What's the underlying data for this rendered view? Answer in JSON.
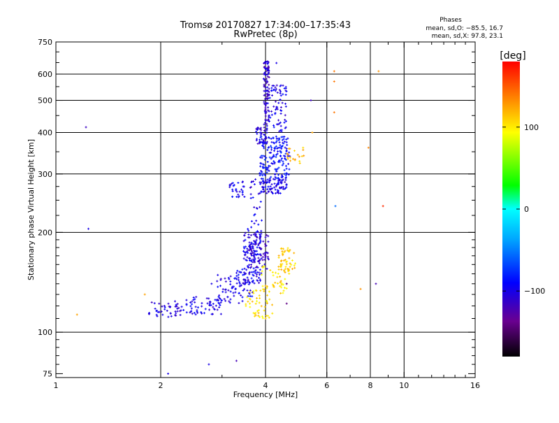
{
  "header": {
    "title_line1": "Tromsø 20170827 17:34:00–17:35:43",
    "title_line2": "RwPretec (8p)",
    "phase_label": "Phases",
    "phase_o": "mean, sd,O: −85.5, 16.7",
    "phase_x": "mean, sd,X:  97.8, 23.1"
  },
  "colorbar": {
    "label": "[deg]",
    "range": [
      -180,
      180
    ],
    "ticks": [
      {
        "value": 100,
        "label": "100"
      },
      {
        "value": 0,
        "label": "0"
      },
      {
        "value": -100,
        "label": "−100"
      }
    ]
  },
  "chart_data": {
    "type": "scatter",
    "xlabel": "Frequency [MHz]",
    "ylabel": "Stationary phase Virtual Height [km]",
    "x_scale": "log",
    "y_scale": "log",
    "xlim": [
      1,
      16
    ],
    "ylim": [
      73,
      750
    ],
    "grid": true,
    "x_ticks": [
      {
        "value": 1,
        "label": "1",
        "grid": false
      },
      {
        "value": 2,
        "label": "2",
        "grid": true
      },
      {
        "value": 4,
        "label": "4",
        "grid": true
      },
      {
        "value": 6,
        "label": "6",
        "grid": true
      },
      {
        "value": 8,
        "label": "8",
        "grid": true
      },
      {
        "value": 10,
        "label": "10",
        "grid": true
      },
      {
        "value": 16,
        "label": "16",
        "grid": false
      }
    ],
    "y_ticks": [
      {
        "value": 75,
        "label": "75",
        "grid": false
      },
      {
        "value": 100,
        "label": "100",
        "grid": true
      },
      {
        "value": 200,
        "label": "200",
        "grid": true
      },
      {
        "value": 300,
        "label": "300",
        "grid": true
      },
      {
        "value": 400,
        "label": "400",
        "grid": true
      },
      {
        "value": 500,
        "label": "500",
        "grid": true
      },
      {
        "value": 600,
        "label": "600",
        "grid": true
      },
      {
        "value": 750,
        "label": "750",
        "grid": false
      }
    ],
    "clusters": [
      {
        "x": [
          1.85,
          2.3
        ],
        "y": [
          110,
          124
        ],
        "phase": -105,
        "count": 45
      },
      {
        "x": [
          2.3,
          3.0
        ],
        "y": [
          113,
          128
        ],
        "phase": -100,
        "count": 60
      },
      {
        "x": [
          2.9,
          3.5
        ],
        "y": [
          122,
          150
        ],
        "phase": -100,
        "count": 55
      },
      {
        "x": [
          3.2,
          3.7
        ],
        "y": [
          128,
          155
        ],
        "phase": -95,
        "count": 40
      },
      {
        "x": [
          3.45,
          3.9
        ],
        "y": [
          140,
          205
        ],
        "phase": -100,
        "count": 130
      },
      {
        "x": [
          3.6,
          4.1
        ],
        "y": [
          155,
          200
        ],
        "phase": -110,
        "count": 70
      },
      {
        "x": [
          3.15,
          3.5
        ],
        "y": [
          255,
          285
        ],
        "phase": -95,
        "count": 30
      },
      {
        "x": [
          3.6,
          3.9
        ],
        "y": [
          205,
          290
        ],
        "phase": -100,
        "count": 25
      },
      {
        "x": [
          3.85,
          4.6
        ],
        "y": [
          262,
          290
        ],
        "phase": -100,
        "count": 90
      },
      {
        "x": [
          3.85,
          4.7
        ],
        "y": [
          290,
          390
        ],
        "phase": -88,
        "count": 170
      },
      {
        "x": [
          3.75,
          4.05
        ],
        "y": [
          370,
          415
        ],
        "phase": -105,
        "count": 45
      },
      {
        "x": [
          3.95,
          4.1
        ],
        "y": [
          410,
          660
        ],
        "phase": -110,
        "count": 110
      },
      {
        "x": [
          4.1,
          4.6
        ],
        "y": [
          400,
          560
        ],
        "phase": -100,
        "count": 70
      },
      {
        "x": [
          3.5,
          4.2
        ],
        "y": [
          110,
          135
        ],
        "phase": 105,
        "count": 50
      },
      {
        "x": [
          3.9,
          4.6
        ],
        "y": [
          130,
          160
        ],
        "phase": 105,
        "count": 40
      },
      {
        "x": [
          4.35,
          4.9
        ],
        "y": [
          150,
          180
        ],
        "phase": 110,
        "count": 50
      },
      {
        "x": [
          4.6,
          5.2
        ],
        "y": [
          320,
          360
        ],
        "phase": 115,
        "count": 20
      }
    ],
    "points": [
      {
        "x": 1.15,
        "y": 113,
        "phase": 125
      },
      {
        "x": 1.22,
        "y": 415,
        "phase": -115
      },
      {
        "x": 1.24,
        "y": 205,
        "phase": -100
      },
      {
        "x": 1.8,
        "y": 130,
        "phase": 125
      },
      {
        "x": 2.1,
        "y": 75,
        "phase": -100
      },
      {
        "x": 2.75,
        "y": 80,
        "phase": -100
      },
      {
        "x": 2.8,
        "y": 140,
        "phase": -100
      },
      {
        "x": 3.3,
        "y": 82,
        "phase": -120
      },
      {
        "x": 4.3,
        "y": 648,
        "phase": -100
      },
      {
        "x": 5.4,
        "y": 500,
        "phase": -115
      },
      {
        "x": 5.45,
        "y": 400,
        "phase": 125
      },
      {
        "x": 6.3,
        "y": 612,
        "phase": 140
      },
      {
        "x": 6.3,
        "y": 570,
        "phase": 140
      },
      {
        "x": 6.3,
        "y": 460,
        "phase": 140
      },
      {
        "x": 6.35,
        "y": 240,
        "phase": -55
      },
      {
        "x": 7.5,
        "y": 135,
        "phase": 130
      },
      {
        "x": 7.9,
        "y": 360,
        "phase": 135
      },
      {
        "x": 8.3,
        "y": 140,
        "phase": -120
      },
      {
        "x": 8.45,
        "y": 612,
        "phase": 130
      },
      {
        "x": 8.7,
        "y": 240,
        "phase": 165
      },
      {
        "x": 4.6,
        "y": 122,
        "phase": -140
      },
      {
        "x": 4.6,
        "y": 140,
        "phase": -145
      }
    ]
  }
}
